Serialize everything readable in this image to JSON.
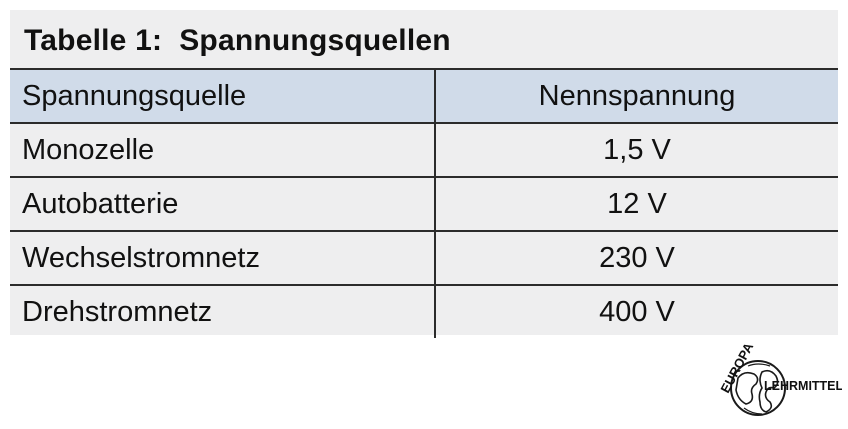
{
  "table": {
    "title": "Tabelle 1:  Spannungsquellen",
    "headers": [
      "Spannungsquelle",
      "Nennspannung"
    ],
    "rows": [
      [
        "Monozelle",
        "1,5 V"
      ],
      [
        "Autobatterie",
        "12 V"
      ],
      [
        "Wechselstromnetz",
        "230 V"
      ],
      [
        "Drehstromnetz",
        "400 V"
      ]
    ]
  },
  "logo": {
    "line1": "EUROPA",
    "line2": "LEHRMITTEL"
  }
}
